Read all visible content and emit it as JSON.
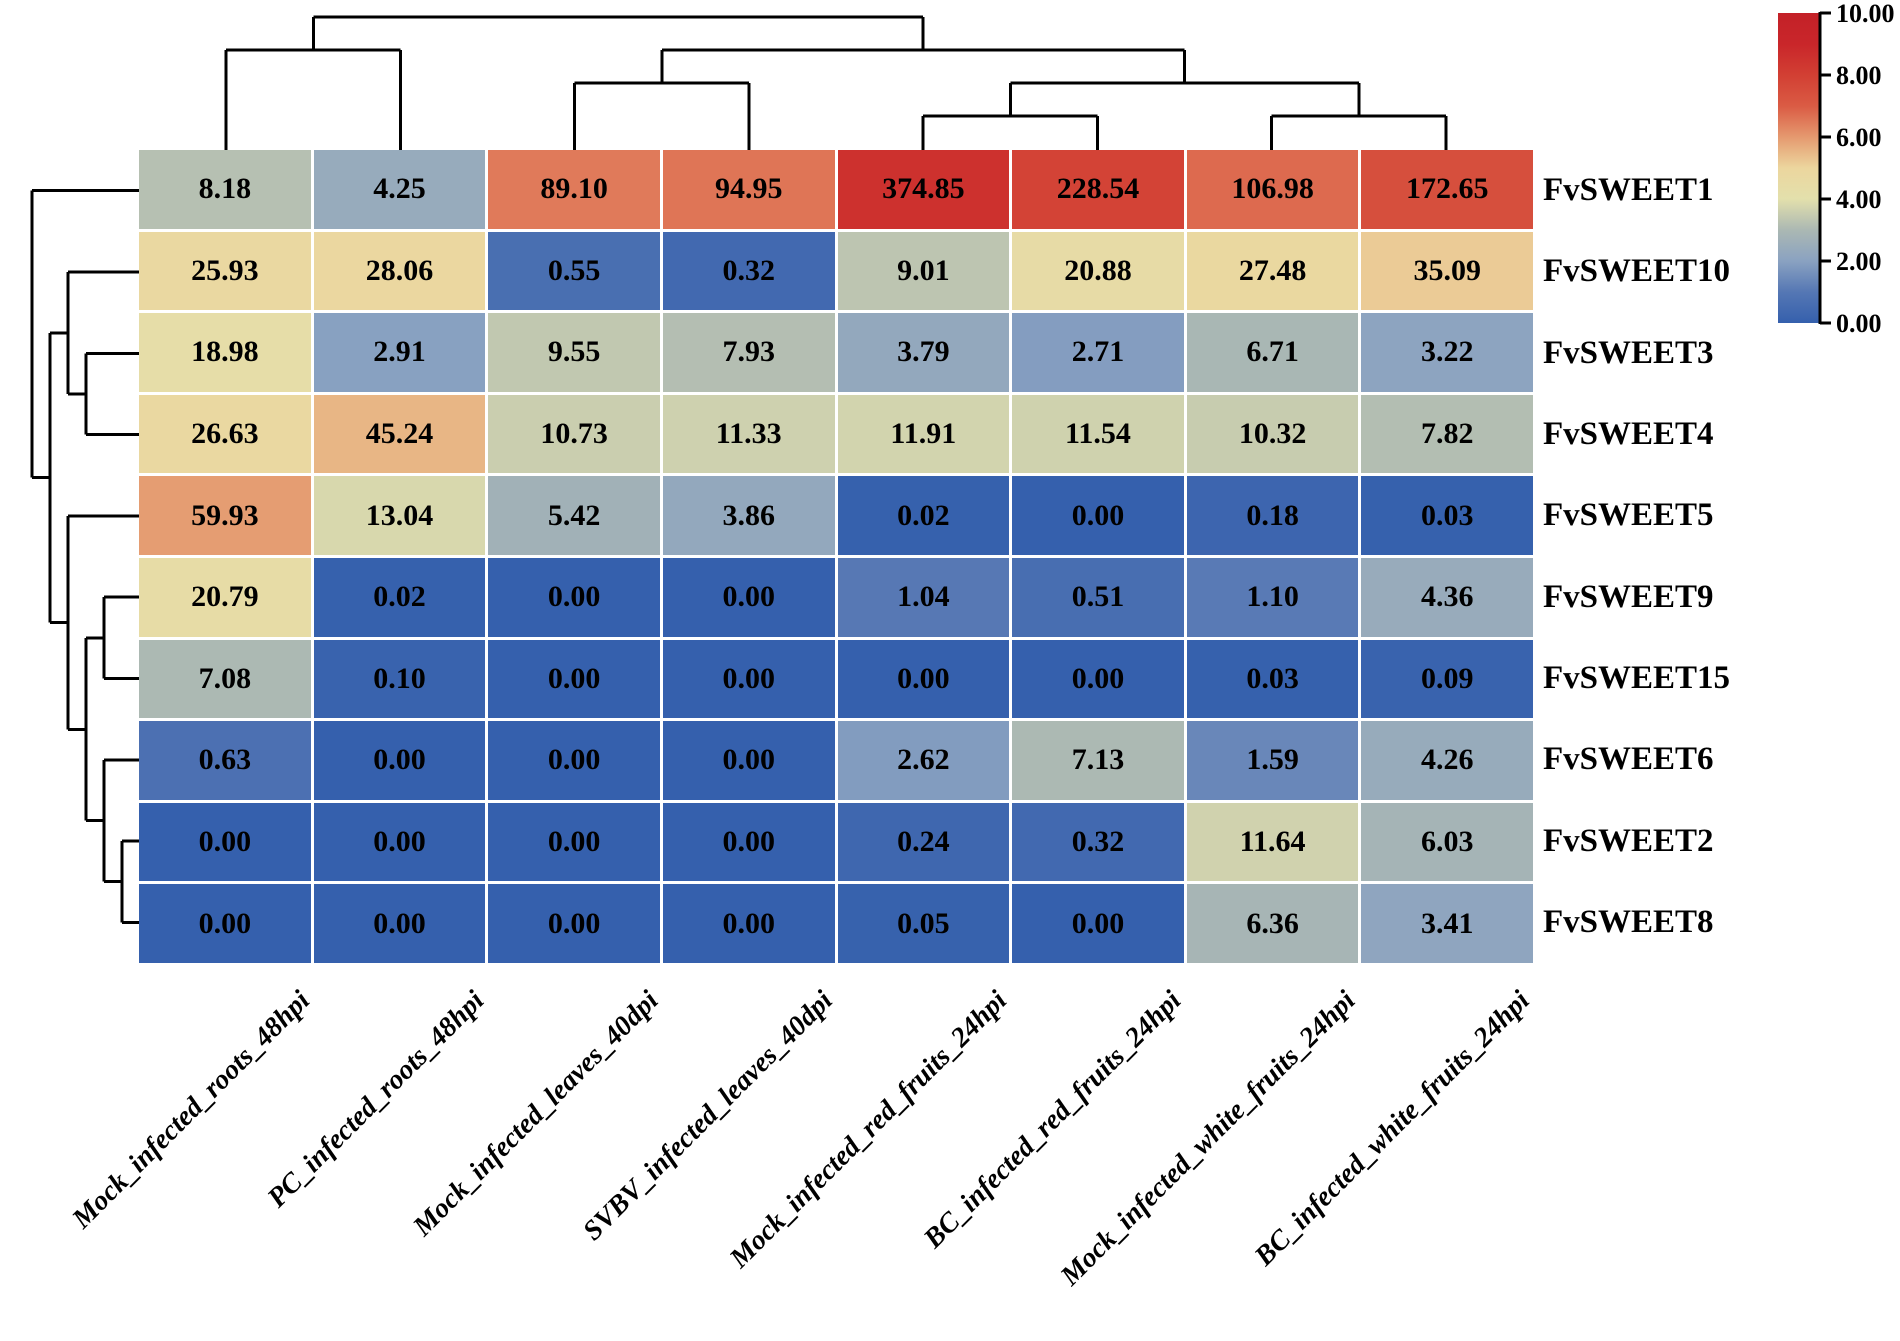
{
  "chart_data": {
    "type": "heatmap",
    "title": "",
    "rows": [
      "FvSWEET1",
      "FvSWEET10",
      "FvSWEET3",
      "FvSWEET4",
      "FvSWEET5",
      "FvSWEET9",
      "FvSWEET15",
      "FvSWEET6",
      "FvSWEET2",
      "FvSWEET8"
    ],
    "columns": [
      "Mock_infected_roots_48hpi",
      "PC_infected_roots_48hpi",
      "Mock_infected_leaves_40dpi",
      "SVBV_infected_leaves_40dpi",
      "Mock_infected_red_fruits_24hpi",
      "BC_infected_red_fruits_24hpi",
      "Mock_infected_white_fruits_24hpi",
      "BC_infected_white_fruits_24hpi"
    ],
    "values": [
      [
        "8.18",
        "4.25",
        "89.10",
        "94.95",
        "374.85",
        "228.54",
        "106.98",
        "172.65"
      ],
      [
        "25.93",
        "28.06",
        "0.55",
        "0.32",
        "9.01",
        "20.88",
        "27.48",
        "35.09"
      ],
      [
        "18.98",
        "2.91",
        "9.55",
        "7.93",
        "3.79",
        "2.71",
        "6.71",
        "3.22"
      ],
      [
        "26.63",
        "45.24",
        "10.73",
        "11.33",
        "11.91",
        "11.54",
        "10.32",
        "7.82"
      ],
      [
        "59.93",
        "13.04",
        "5.42",
        "3.86",
        "0.02",
        "0.00",
        "0.18",
        "0.03"
      ],
      [
        "20.79",
        "0.02",
        "0.00",
        "0.00",
        "1.04",
        "0.51",
        "1.10",
        "4.36"
      ],
      [
        "7.08",
        "0.10",
        "0.00",
        "0.00",
        "0.00",
        "0.00",
        "0.03",
        "0.09"
      ],
      [
        "0.63",
        "0.00",
        "0.00",
        "0.00",
        "2.62",
        "7.13",
        "1.59",
        "4.26"
      ],
      [
        "0.00",
        "0.00",
        "0.00",
        "0.00",
        "0.24",
        "0.32",
        "11.64",
        "6.03"
      ],
      [
        "0.00",
        "0.00",
        "0.00",
        "0.00",
        "0.05",
        "0.00",
        "6.36",
        "3.41"
      ]
    ],
    "value_transform": "log2(value+1) clamped to [0,10]",
    "colormap_anchors": [
      "#3560ad",
      "#5577b4",
      "#8aa2c1",
      "#abb8b3",
      "#e3e0ac",
      "#ecd69e",
      "#e5996f",
      "#da5b44",
      "#d23f33",
      "#c9262a",
      "#c32128"
    ],
    "colorbar": {
      "min": 0,
      "max": 10,
      "tick_labels": [
        "10.00",
        "8.00",
        "6.00",
        "4.00",
        "2.00",
        "0.00"
      ]
    },
    "row_dendrogram": [
      0,
      [
        [
          1,
          [
            2,
            3
          ]
        ],
        [
          4,
          [
            [
              5,
              6
            ],
            [
              7,
              [
                8,
                9
              ]
            ]
          ]
        ]
      ]
    ],
    "col_dendrogram": [
      [
        0,
        1
      ],
      [
        [
          2,
          3
        ],
        [
          [
            4,
            5
          ],
          [
            6,
            7
          ]
        ]
      ]
    ],
    "legend_position": "top-right",
    "grid": false
  }
}
